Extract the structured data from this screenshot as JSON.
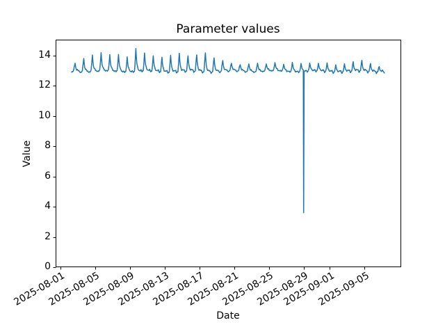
{
  "chart_data": {
    "type": "line",
    "title": "Parameter values",
    "xlabel": "Date",
    "ylabel": "Value",
    "line_color": "#1f77b4",
    "background_color": "#ffffff",
    "grid": false,
    "legend": false,
    "ylim": [
      0,
      15.01
    ],
    "xlim_dates": [
      "2025-07-31",
      "2025-09-09"
    ],
    "y_ticks": [
      {
        "label": "0",
        "value": 0
      },
      {
        "label": "2",
        "value": 2
      },
      {
        "label": "4",
        "value": 4
      },
      {
        "label": "6",
        "value": 6
      },
      {
        "label": "8",
        "value": 8
      },
      {
        "label": "10",
        "value": 10
      },
      {
        "label": "12",
        "value": 12
      },
      {
        "label": "14",
        "value": 14
      }
    ],
    "x_ticks": [
      {
        "label": "2025-08-01",
        "day": 0
      },
      {
        "label": "2025-08-05",
        "day": 4
      },
      {
        "label": "2025-08-09",
        "day": 8
      },
      {
        "label": "2025-08-13",
        "day": 12
      },
      {
        "label": "2025-08-17",
        "day": 16
      },
      {
        "label": "2025-08-21",
        "day": 20
      },
      {
        "label": "2025-08-25",
        "day": 24
      },
      {
        "label": "2025-08-29",
        "day": 28
      },
      {
        "label": "2025-09-01",
        "day": 31
      },
      {
        "label": "2025-09-05",
        "day": 35
      }
    ],
    "series": {
      "name": "parameter",
      "baseline": 13.0,
      "start_day": 1.3,
      "start_value": 12.9,
      "end_day": 37.3,
      "end_value": 12.85,
      "peak_day_offset": 1.7,
      "daily_peaks": [
        13.55,
        13.9,
        14.1,
        14.2,
        14.05,
        14.1,
        13.95,
        14.45,
        14.1,
        13.9,
        13.85,
        14.0,
        14.1,
        13.9,
        14.0,
        14.2,
        13.9,
        13.7,
        13.5,
        13.45,
        13.55,
        13.6,
        13.5,
        13.55,
        13.45,
        13.6,
        13.5,
        13.45,
        13.4,
        13.45,
        13.35,
        13.4,
        13.5,
        13.6,
        13.45,
        13.3
      ],
      "dip": {
        "date": "2025-08-29",
        "day": 28,
        "value": 3.6
      },
      "waveform": {
        "offsets": [
          -0.5,
          -0.42,
          -0.34,
          -0.28,
          -0.22,
          -0.16,
          -0.1,
          -0.05,
          0,
          0.05,
          0.11,
          0.18,
          0.26,
          0.36,
          0.44
        ],
        "rise_width": 0.16,
        "decay_tau": 0.1,
        "pre_trough_depth": 0.09
      }
    }
  }
}
